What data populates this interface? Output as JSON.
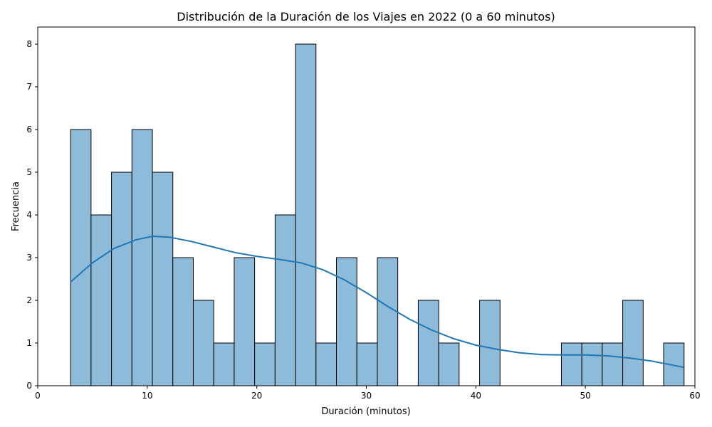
{
  "chart_data": {
    "type": "bar",
    "subtype": "histogram-with-kde",
    "title": "Distribución de la Duración de los Viajes en 2022 (0 a 60 minutos)",
    "xlabel": "Duración (minutos)",
    "ylabel": "Frecuencia",
    "xlim": [
      0,
      60
    ],
    "ylim": [
      0,
      8.4
    ],
    "x_ticks": [
      0,
      10,
      20,
      30,
      40,
      50,
      60
    ],
    "y_ticks": [
      0,
      1,
      2,
      3,
      4,
      5,
      6,
      7,
      8
    ],
    "grid": false,
    "bins": {
      "start": 3.0,
      "width": 1.867,
      "counts": [
        6,
        4,
        5,
        6,
        5,
        3,
        2,
        1,
        3,
        1,
        4,
        8,
        1,
        3,
        1,
        3,
        0,
        2,
        1,
        0,
        2,
        0,
        0,
        0,
        1,
        1,
        1,
        2,
        0,
        1
      ]
    },
    "kde": {
      "x": [
        3,
        5,
        7,
        9,
        10.5,
        12,
        14,
        16,
        18,
        20,
        22,
        24,
        26,
        28,
        30,
        32,
        34,
        36,
        38,
        40,
        42,
        44,
        46,
        48,
        50,
        52,
        54,
        56,
        58,
        59
      ],
      "y": [
        2.43,
        2.88,
        3.22,
        3.42,
        3.5,
        3.48,
        3.38,
        3.25,
        3.12,
        3.03,
        2.96,
        2.88,
        2.72,
        2.48,
        2.18,
        1.85,
        1.55,
        1.3,
        1.1,
        0.95,
        0.85,
        0.77,
        0.73,
        0.72,
        0.72,
        0.7,
        0.65,
        0.58,
        0.48,
        0.43
      ]
    },
    "colors": {
      "bar_fill": "#8fbbdb",
      "bar_edge": "#000000",
      "kde_line": "#1f77b4"
    }
  }
}
